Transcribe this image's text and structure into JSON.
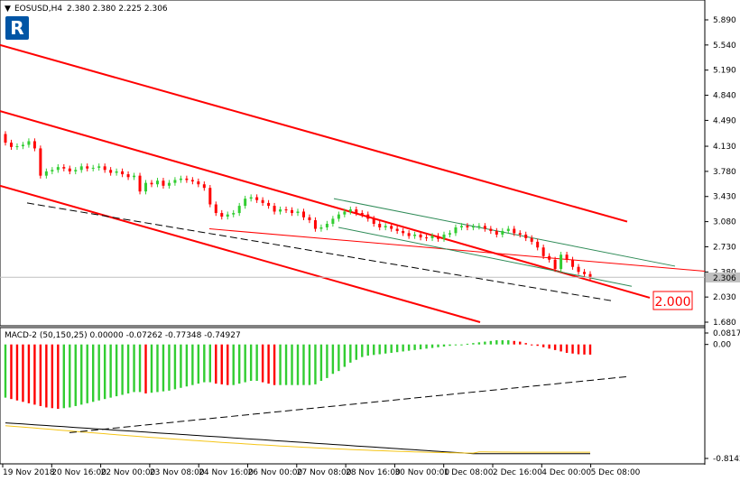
{
  "header": {
    "symbol": "EOSUSD,H4",
    "ohlc": "2.380 2.380 2.225 2.306"
  },
  "logo_text": "R",
  "price_label": "2.000",
  "indicator": {
    "name": "MACD-2 (50,150,25) 0.00000 -0.07262 -0.77348 -0.74927"
  },
  "colors": {
    "bull": "#32cd32",
    "bear": "#ff0000",
    "channel": "#ff0000",
    "inner_channel": "#2e8b57",
    "dashed": "#000000",
    "signal": "#f5c518",
    "logo": "#0055a5"
  },
  "chart_data": [
    {
      "type": "candlestick",
      "title": "EOSUSD,H4",
      "y_ticks": [
        "5.890",
        "5.540",
        "5.190",
        "4.840",
        "4.490",
        "4.130",
        "3.780",
        "3.430",
        "3.080",
        "2.730",
        "2.380",
        "2.030",
        "1.680"
      ],
      "ylim": [
        1.68,
        5.89
      ],
      "x_ticks": [
        "19 Nov 2018",
        "20 Nov 16:00",
        "22 Nov 00:00",
        "23 Nov 08:00",
        "24 Nov 16:00",
        "26 Nov 00:00",
        "27 Nov 08:00",
        "28 Nov 16:00",
        "30 Nov 00:00",
        "1 Dec 08:00",
        "2 Dec 16:00",
        "4 Dec 00:00",
        "5 Dec 08:00"
      ],
      "current_price": "2.306",
      "label_level": "2.000",
      "closes": [
        4.18,
        4.12,
        4.13,
        4.15,
        4.2,
        4.1,
        3.72,
        3.78,
        3.8,
        3.84,
        3.82,
        3.78,
        3.8,
        3.85,
        3.82,
        3.83,
        3.85,
        3.8,
        3.76,
        3.78,
        3.74,
        3.7,
        3.72,
        3.5,
        3.62,
        3.6,
        3.65,
        3.58,
        3.62,
        3.66,
        3.68,
        3.66,
        3.64,
        3.6,
        3.55,
        3.32,
        3.2,
        3.15,
        3.18,
        3.2,
        3.3,
        3.4,
        3.42,
        3.38,
        3.34,
        3.3,
        3.22,
        3.25,
        3.24,
        3.2,
        3.22,
        3.14,
        3.1,
        2.98,
        3.0,
        3.05,
        3.12,
        3.18,
        3.22,
        3.25,
        3.2,
        3.18,
        3.12,
        3.05,
        3.0,
        3.02,
        2.98,
        2.95,
        2.92,
        2.88,
        2.9,
        2.86,
        2.85,
        2.88,
        2.84,
        2.9,
        2.92,
        3.0,
        3.02,
        3.0,
        3.01,
        3.02,
        2.98,
        2.95,
        2.9,
        2.95,
        2.98,
        2.92,
        2.9,
        2.85,
        2.8,
        2.72,
        2.6,
        2.55,
        2.42,
        2.62,
        2.55,
        2.45,
        2.38,
        2.35,
        2.306
      ]
    },
    {
      "type": "bar",
      "title": "MACD-2 (50,150,25)",
      "y_ticks": [
        "0.08177",
        "0.00",
        "-0.81421"
      ],
      "ylim": [
        -0.81421,
        0.08177
      ],
      "values": [
        -0.38,
        -0.39,
        -0.4,
        -0.41,
        -0.42,
        -0.43,
        -0.44,
        -0.45,
        -0.455,
        -0.46,
        -0.455,
        -0.45,
        -0.44,
        -0.43,
        -0.42,
        -0.41,
        -0.4,
        -0.39,
        -0.38,
        -0.37,
        -0.36,
        -0.35,
        -0.34,
        -0.34,
        -0.35,
        -0.345,
        -0.34,
        -0.335,
        -0.33,
        -0.32,
        -0.31,
        -0.3,
        -0.29,
        -0.28,
        -0.27,
        -0.27,
        -0.28,
        -0.285,
        -0.29,
        -0.29,
        -0.28,
        -0.27,
        -0.26,
        -0.26,
        -0.27,
        -0.28,
        -0.29,
        -0.29,
        -0.29,
        -0.29,
        -0.29,
        -0.29,
        -0.29,
        -0.285,
        -0.26,
        -0.24,
        -0.21,
        -0.19,
        -0.16,
        -0.13,
        -0.11,
        -0.09,
        -0.08,
        -0.075,
        -0.07,
        -0.065,
        -0.06,
        -0.055,
        -0.05,
        -0.045,
        -0.04,
        -0.035,
        -0.03,
        -0.025,
        -0.02,
        -0.015,
        -0.01,
        -0.005,
        0.0,
        0.005,
        0.01,
        0.015,
        0.02,
        0.025,
        0.03,
        0.03,
        0.03,
        0.025,
        0.02,
        0.01,
        0.0,
        -0.01,
        -0.02,
        -0.03,
        -0.04,
        -0.05,
        -0.06,
        -0.065,
        -0.07,
        -0.072,
        -0.07262
      ]
    }
  ]
}
